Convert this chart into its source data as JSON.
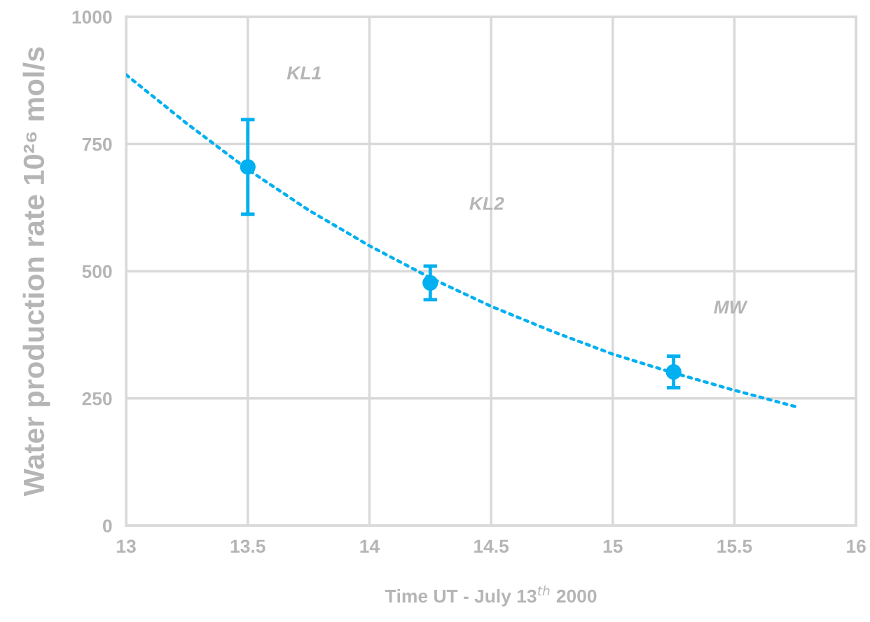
{
  "chart_data": {
    "type": "scatter",
    "xlabel": "Time UT - July 13$^{th}$ 2000",
    "ylabel": "Water production rate 10²⁶ mol/s",
    "x": [
      13.5,
      14.25,
      15.25
    ],
    "series": [
      {
        "type": "line",
        "color": "#00b0f0",
        "line_style": "dotted",
        "marker": "none",
        "x": [
          13,
          13.25,
          13.5,
          13.75,
          14,
          14.25,
          14.5,
          14.75,
          15,
          15.25,
          15.5,
          15.75
        ],
        "values": [
          886,
          790,
          700,
          620,
          550,
          487,
          431,
          382,
          337,
          300,
          266,
          234
        ]
      },
      {
        "color": "#00b0f0",
        "marker": "circle",
        "values": [
          705,
          477,
          302
        ],
        "errors": [
          93,
          33,
          31
        ]
      }
    ],
    "annotations": [
      "KL1",
      "KL2",
      "MW"
    ],
    "xlim": [
      13,
      16
    ],
    "xticks": [
      13,
      13.5,
      14,
      14.5,
      15,
      15.5,
      16
    ],
    "ylim": [
      0,
      1000
    ],
    "yticks": [
      0,
      250,
      500,
      750,
      1000
    ],
    "grid": true,
    "legend": false
  }
}
